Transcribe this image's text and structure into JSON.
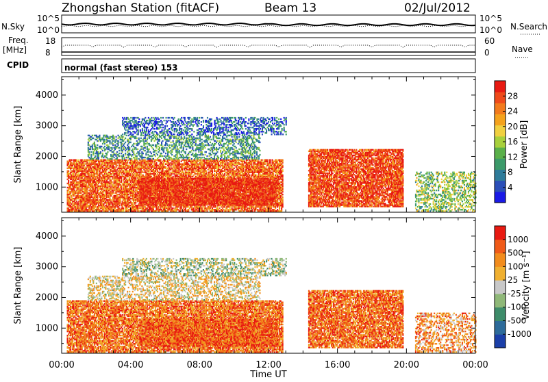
{
  "header": {
    "station": "Zhongshan Station (fitACF)",
    "beam": "Beam 13",
    "date": "02/Jul/2012"
  },
  "strip": {
    "nsky_label": "N.Sky",
    "nsky_top": "10^5",
    "nsky_bottom": "10^0",
    "nsearch_label": "N.Search",
    "nsearch_top": "10^5",
    "nsearch_bottom": "10^0",
    "freq_label_1": "Freq.",
    "freq_label_2": "[MHz]",
    "freq_top": "18",
    "freq_bottom": "8",
    "nave_label": "Nave",
    "nave_top": "60",
    "nave_bottom": "0",
    "cpid_label": "CPID",
    "cpid_text": "normal (fast stereo) 153"
  },
  "chart_data": [
    {
      "type": "heatmap",
      "panel": "power",
      "ylabel": "Slant Range [km]",
      "xlabel": "Time UT",
      "x_ticks": [
        "00:00",
        "04:00",
        "08:00",
        "12:00",
        "16:00",
        "20:00",
        "00:00"
      ],
      "y_ticks": [
        "1000",
        "2000",
        "3000",
        "4000"
      ],
      "ylim": [
        180,
        4600
      ],
      "colorbar_label": "Power [dB]",
      "colorbar_ticks": [
        "4",
        "8",
        "12",
        "16",
        "20",
        "24",
        "28"
      ],
      "colorbar_colors": [
        "#1a1ae6",
        "#2b4fb8",
        "#2f7c9a",
        "#3c9a6a",
        "#5ab04a",
        "#a8d03c",
        "#f0d040",
        "#f4a21c",
        "#f27a1c",
        "#ef4a1a",
        "#e81a12"
      ],
      "echo_regions": [
        {
          "t0": 0.3,
          "t1": 12.8,
          "r0": 200,
          "r1": 1900,
          "level": 0.82
        },
        {
          "t0": 4.5,
          "t1": 12.5,
          "r0": 400,
          "r1": 1300,
          "level": 0.95
        },
        {
          "t0": 1.5,
          "t1": 11.5,
          "r0": 1900,
          "r1": 2700,
          "level": 0.32
        },
        {
          "t0": 3.5,
          "t1": 13.0,
          "r0": 2700,
          "r1": 3250,
          "level": 0.18
        },
        {
          "t0": 14.3,
          "t1": 19.8,
          "r0": 350,
          "r1": 2200,
          "level": 0.88
        },
        {
          "t0": 20.5,
          "t1": 24.0,
          "r0": 200,
          "r1": 1500,
          "level": 0.45
        }
      ]
    },
    {
      "type": "heatmap",
      "panel": "velocity",
      "ylabel": "Slant Range [km]",
      "xlabel": "Time UT",
      "x_ticks": [
        "00:00",
        "04:00",
        "08:00",
        "12:00",
        "16:00",
        "20:00",
        "00:00"
      ],
      "y_ticks": [
        "1000",
        "2000",
        "3000",
        "4000"
      ],
      "ylim": [
        180,
        4600
      ],
      "colorbar_label": "Velocity [m s⁻¹]",
      "colorbar_ticks": [
        "1000",
        "500",
        "100",
        "25",
        "-25",
        "-100",
        "-500",
        "-1000"
      ],
      "colorbar_colors": [
        "#1b3fa8",
        "#2d6b9a",
        "#3e8c6a",
        "#8fb878",
        "#c8c8c8",
        "#f0b030",
        "#f28c1c",
        "#f05a18",
        "#e81a12"
      ],
      "echo_regions": [
        {
          "t0": 0.3,
          "t1": 12.8,
          "r0": 200,
          "r1": 1900,
          "level": 0.78
        },
        {
          "t0": 4.5,
          "t1": 12.5,
          "r0": 400,
          "r1": 1300,
          "level": 0.82
        },
        {
          "t0": 1.5,
          "t1": 11.5,
          "r0": 1900,
          "r1": 2700,
          "level": 0.55
        },
        {
          "t0": 3.5,
          "t1": 13.0,
          "r0": 2700,
          "r1": 3250,
          "level": 0.45
        },
        {
          "t0": 14.3,
          "t1": 19.8,
          "r0": 350,
          "r1": 2200,
          "level": 0.8
        },
        {
          "t0": 20.5,
          "t1": 24.0,
          "r0": 200,
          "r1": 1500,
          "level": 0.7
        }
      ]
    }
  ]
}
